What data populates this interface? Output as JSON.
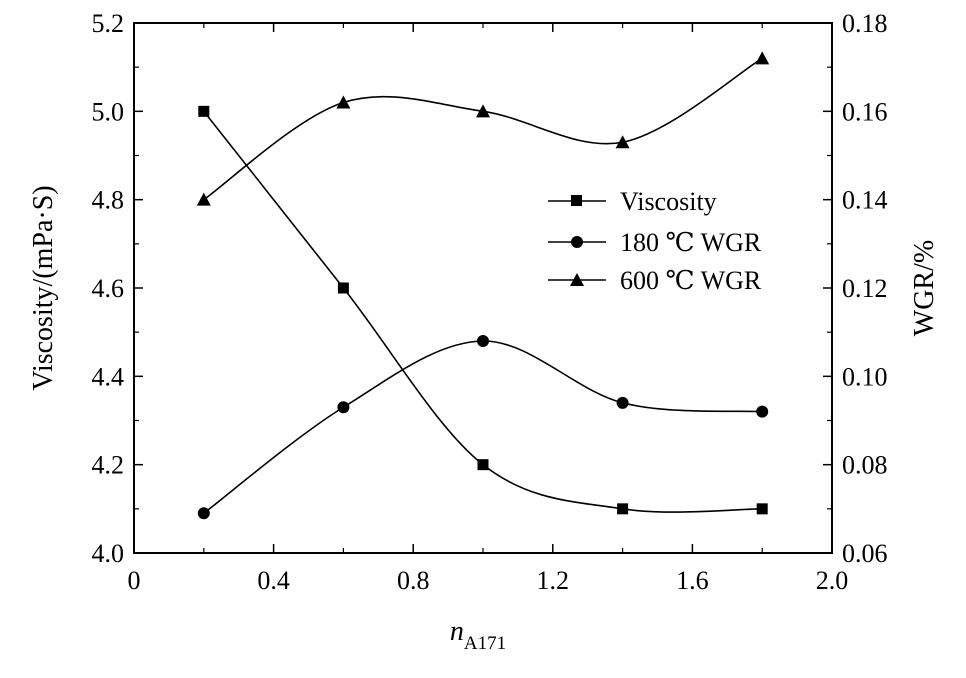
{
  "chart_data": {
    "type": "line",
    "title": "",
    "xlabel": "n",
    "xlabel_subscript": "A171",
    "ylabel": "Viscosity/(mPa·S)",
    "y2label": "WGR/%",
    "xlim": [
      0,
      2.0
    ],
    "ylim": [
      4.0,
      5.2
    ],
    "y2lim": [
      0.06,
      0.18
    ],
    "x_ticks": [
      "0",
      "0.4",
      "0.8",
      "1.2",
      "1.6",
      "2.0"
    ],
    "x_tick_values": [
      0,
      0.4,
      0.8,
      1.2,
      1.6,
      2.0
    ],
    "y_ticks": [
      "4.0",
      "4.2",
      "4.4",
      "4.6",
      "4.8",
      "5.0",
      "5.2"
    ],
    "y_tick_values": [
      4.0,
      4.2,
      4.4,
      4.6,
      4.8,
      5.0,
      5.2
    ],
    "y2_ticks": [
      "0.06",
      "0.08",
      "0.10",
      "0.12",
      "0.14",
      "0.16",
      "0.18"
    ],
    "y2_tick_values": [
      0.06,
      0.08,
      0.1,
      0.12,
      0.14,
      0.16,
      0.18
    ],
    "grid": false,
    "legend_position": "right-middle",
    "series": [
      {
        "name": "Viscosity",
        "axis": "left",
        "marker": "square",
        "x": [
          0.2,
          0.6,
          1.0,
          1.4,
          1.8
        ],
        "values": [
          5.0,
          4.6,
          4.2,
          4.1,
          4.1
        ]
      },
      {
        "name": "180 ℃ WGR",
        "axis": "right",
        "marker": "circle",
        "x": [
          0.2,
          0.6,
          1.0,
          1.4,
          1.8
        ],
        "values": [
          0.069,
          0.093,
          0.108,
          0.094,
          0.092
        ]
      },
      {
        "name": "600 ℃ WGR",
        "axis": "right",
        "marker": "triangle",
        "x": [
          0.2,
          0.6,
          1.0,
          1.4,
          1.8
        ],
        "values": [
          0.14,
          0.162,
          0.16,
          0.153,
          0.172
        ]
      }
    ]
  }
}
